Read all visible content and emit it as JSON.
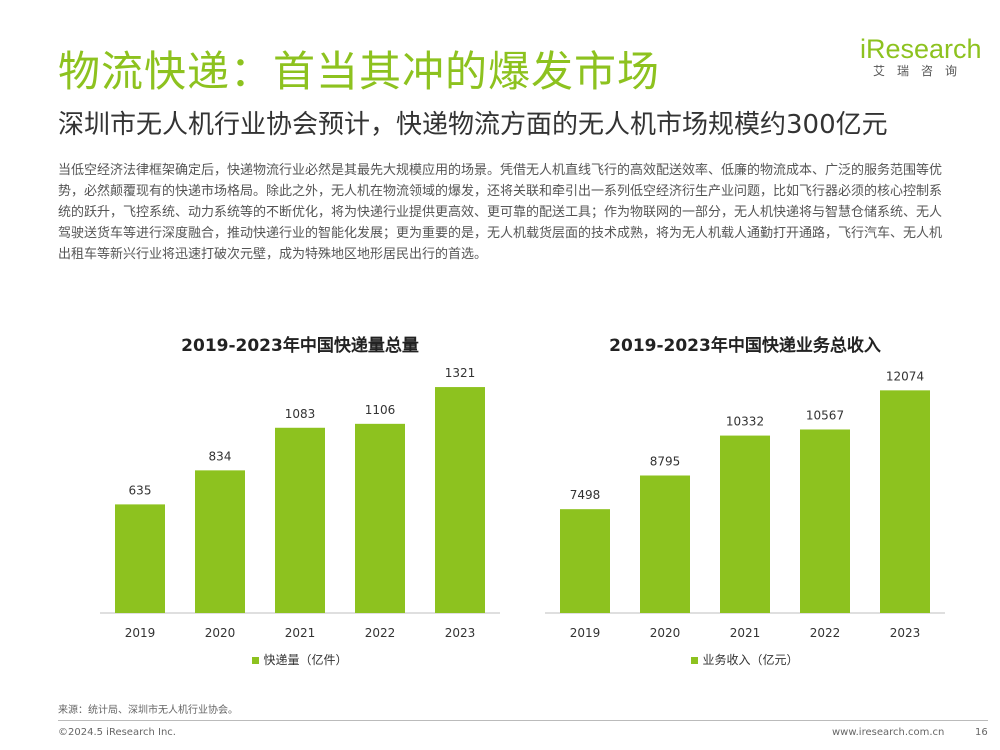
{
  "title": "物流快递：首当其冲的爆发市场",
  "subtitle": "深圳市无人机行业协会预计，快递物流方面的无人机市场规模约300亿元",
  "body": "当低空经济法律框架确定后，快递物流行业必然是其最先大规模应用的场景。凭借无人机直线飞行的高效配送效率、低廉的物流成本、广泛的服务范围等优势，必然颠覆现有的快递市场格局。除此之外，无人机在物流领域的爆发，还将关联和牵引出一系列低空经济衍生产业问题，比如飞行器必须的核心控制系统的跃升，飞控系统、动力系统等的不断优化，将为快递行业提供更高效、更可靠的配送工具；作为物联网的一部分，无人机快递将与智慧仓储系统、无人驾驶送货车等进行深度融合，推动快递行业的智能化发展；更为重要的是，无人机载货层面的技术成熟，将为无人机载人通勤打开通路，飞行汽车、无人机出租车等新兴行业将迅速打破次元壁，成为特殊地区地形居民出行的首选。",
  "logo": {
    "main": "iResearch",
    "sub": "艾瑞咨询"
  },
  "colors": {
    "accent": "#8dc21f"
  },
  "chart_data": [
    {
      "type": "bar",
      "title": "2019-2023年中国快递量总量",
      "categories": [
        "2019",
        "2020",
        "2021",
        "2022",
        "2023"
      ],
      "series": [
        {
          "name": "快递量（亿件）",
          "values": [
            635,
            834,
            1083,
            1106,
            1321
          ]
        }
      ],
      "ylim": [
        0,
        1450
      ],
      "grid": false,
      "legend": "bottom"
    },
    {
      "type": "bar",
      "title": "2019-2023年中国快递业务总收入",
      "categories": [
        "2019",
        "2020",
        "2021",
        "2022",
        "2023"
      ],
      "series": [
        {
          "name": "业务收入（亿元）",
          "values": [
            7498,
            8795,
            10332,
            10567,
            12074
          ]
        }
      ],
      "ylim": [
        3500,
        13050
      ],
      "grid": false,
      "legend": "bottom"
    }
  ],
  "source": "来源：统计局、深圳市无人机行业协会。",
  "footer": {
    "copyright": "©2024.5 iResearch Inc.",
    "website": "www.iresearch.com.cn",
    "page": "16"
  }
}
